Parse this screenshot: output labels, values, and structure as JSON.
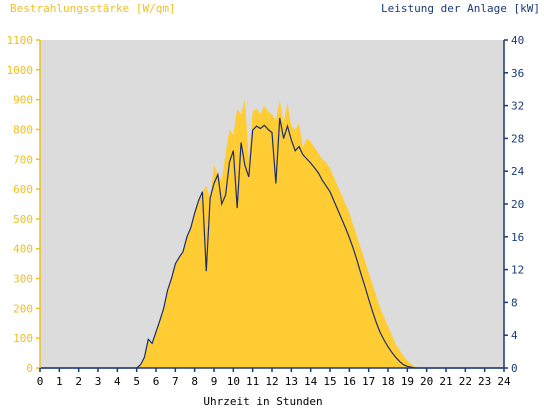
{
  "chart_data": {
    "type": "area",
    "left_axis_label": "Bestrahlungsstärke [W/qm]",
    "right_axis_label": "Leistung der Anlage [kW]",
    "xlabel": "Uhrzeit in Stunden",
    "x_ticks": [
      "0",
      "1",
      "2",
      "3",
      "4",
      "5",
      "6",
      "7",
      "8",
      "9",
      "10",
      "11",
      "12",
      "13",
      "14",
      "15",
      "16",
      "17",
      "18",
      "19",
      "20",
      "21",
      "22",
      "23",
      "24"
    ],
    "y_left_ticks": [
      "0",
      "100",
      "200",
      "300",
      "400",
      "500",
      "600",
      "700",
      "800",
      "900",
      "1000",
      "1100"
    ],
    "y_right_ticks": [
      "0",
      "4",
      "8",
      "12",
      "16",
      "20",
      "24",
      "28",
      "32",
      "36",
      "40"
    ],
    "xlim": [
      0,
      24
    ],
    "ylim_left": [
      0,
      1100
    ],
    "ylim_right": [
      0,
      40
    ],
    "grid": false,
    "colors": {
      "plot_background": "#dcdcdc",
      "irradiance_fill": "#ffcc33",
      "power_line": "#1a2e6e",
      "left_axis_text": "#f0c020",
      "right_axis_text": "#1a3a7a",
      "xaxis_text": "#000000"
    },
    "series": [
      {
        "axis": "left",
        "style": "area",
        "x": [
          0,
          5.0,
          5.2,
          5.4,
          5.6,
          5.8,
          6.0,
          6.2,
          6.4,
          6.6,
          6.8,
          7.0,
          7.2,
          7.4,
          7.6,
          7.8,
          8.0,
          8.2,
          8.4,
          8.6,
          8.8,
          9.0,
          9.2,
          9.4,
          9.6,
          9.8,
          10.0,
          10.2,
          10.4,
          10.6,
          10.8,
          11.0,
          11.2,
          11.4,
          11.6,
          11.8,
          12.0,
          12.2,
          12.4,
          12.6,
          12.8,
          13.0,
          13.2,
          13.4,
          13.6,
          13.8,
          14.0,
          14.2,
          14.4,
          14.6,
          14.8,
          15.0,
          15.2,
          15.4,
          15.6,
          15.8,
          16.0,
          16.2,
          16.4,
          16.6,
          16.8,
          17.0,
          17.2,
          17.4,
          17.6,
          17.8,
          18.0,
          18.2,
          18.4,
          18.6,
          18.8,
          19.0,
          19.2,
          19.4,
          19.6,
          19.8,
          20.0,
          24
        ],
        "y": [
          0,
          0,
          10,
          35,
          90,
          80,
          120,
          160,
          200,
          260,
          300,
          350,
          370,
          390,
          440,
          470,
          520,
          560,
          590,
          610,
          570,
          680,
          650,
          630,
          720,
          800,
          780,
          870,
          850,
          900,
          700,
          860,
          870,
          850,
          880,
          860,
          850,
          830,
          900,
          820,
          890,
          810,
          800,
          820,
          740,
          770,
          760,
          740,
          720,
          700,
          690,
          670,
          640,
          610,
          580,
          550,
          520,
          480,
          440,
          400,
          360,
          320,
          280,
          240,
          200,
          170,
          140,
          110,
          80,
          60,
          40,
          25,
          12,
          5,
          2,
          0,
          0,
          0
        ]
      },
      {
        "axis": "right",
        "style": "line",
        "x": [
          0,
          5.0,
          5.2,
          5.4,
          5.6,
          5.8,
          6.0,
          6.2,
          6.4,
          6.6,
          6.8,
          7.0,
          7.2,
          7.4,
          7.6,
          7.8,
          8.0,
          8.2,
          8.4,
          8.6,
          8.8,
          9.0,
          9.2,
          9.4,
          9.6,
          9.8,
          10.0,
          10.2,
          10.4,
          10.6,
          10.8,
          11.0,
          11.2,
          11.4,
          11.6,
          11.8,
          12.0,
          12.2,
          12.4,
          12.6,
          12.8,
          13.0,
          13.2,
          13.4,
          13.6,
          13.8,
          14.0,
          14.2,
          14.4,
          14.6,
          14.8,
          15.0,
          15.2,
          15.4,
          15.6,
          15.8,
          16.0,
          16.2,
          16.4,
          16.6,
          16.8,
          17.0,
          17.2,
          17.4,
          17.6,
          17.8,
          18.0,
          18.2,
          18.4,
          18.6,
          18.8,
          19.0,
          19.2,
          19.4,
          19.6,
          19.8,
          20.0,
          24
        ],
        "y": [
          0,
          0,
          0.4,
          1.3,
          3.5,
          3.0,
          4.4,
          5.8,
          7.3,
          9.5,
          10.9,
          12.7,
          13.5,
          14.2,
          16.0,
          17.1,
          18.9,
          20.4,
          21.5,
          11.8,
          20.7,
          22.5,
          23.6,
          20.0,
          21.1,
          25.1,
          26.5,
          19.5,
          27.5,
          24.7,
          23.3,
          29.0,
          29.5,
          29.2,
          29.6,
          29.1,
          28.7,
          22.5,
          30.5,
          28.0,
          29.5,
          27.8,
          26.5,
          27.0,
          26.0,
          25.5,
          25.0,
          24.4,
          23.8,
          22.9,
          22.2,
          21.5,
          20.4,
          19.3,
          18.2,
          17.1,
          15.9,
          14.6,
          13.1,
          11.5,
          10.0,
          8.4,
          6.9,
          5.5,
          4.3,
          3.4,
          2.6,
          1.9,
          1.3,
          0.8,
          0.4,
          0.2,
          0.1,
          0,
          0,
          0,
          0,
          0
        ]
      }
    ]
  }
}
